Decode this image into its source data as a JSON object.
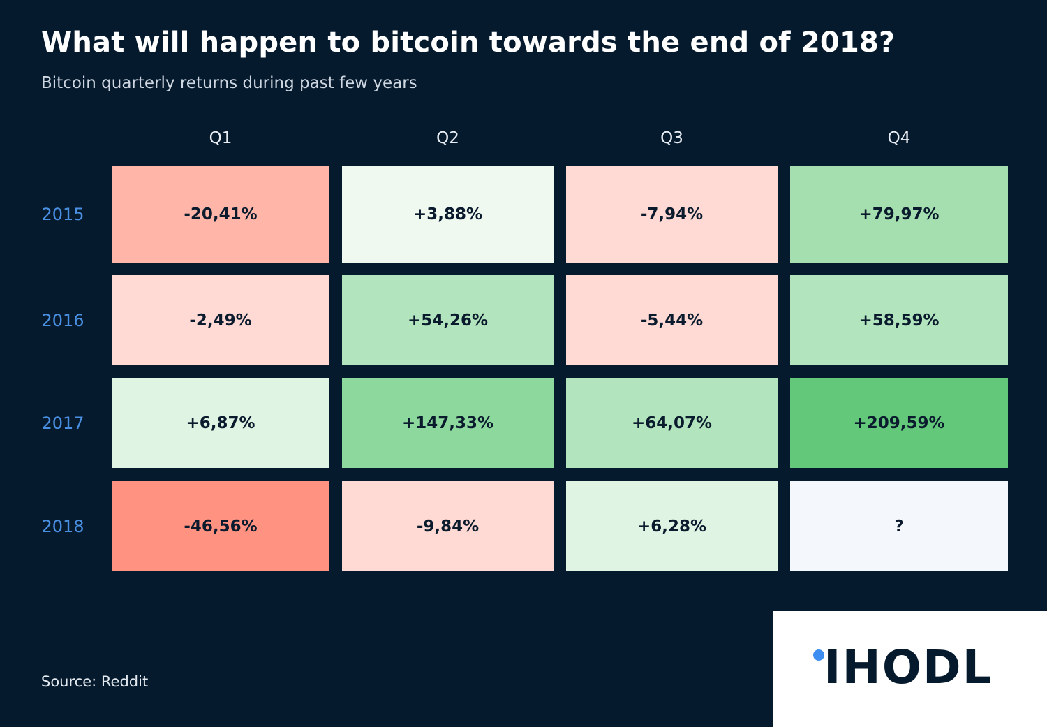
{
  "chart_data": {
    "type": "heatmap",
    "title": "What will happen to bitcoin towards the end of 2018?",
    "subtitle": "Bitcoin quarterly returns during past few years",
    "x_categories": [
      "Q1",
      "Q2",
      "Q3",
      "Q4"
    ],
    "y_categories": [
      "2015",
      "2016",
      "2017",
      "2018"
    ],
    "values": [
      [
        -20.41,
        3.88,
        -7.94,
        79.97
      ],
      [
        -2.49,
        54.26,
        -5.44,
        58.59
      ],
      [
        6.87,
        147.33,
        64.07,
        209.59
      ],
      [
        -46.56,
        -9.84,
        6.28,
        null
      ]
    ],
    "labels": [
      [
        "-20,41%",
        "+3,88%",
        "-7,94%",
        "+79,97%"
      ],
      [
        "-2,49%",
        "+54,26%",
        "-5,44%",
        "+58,59%"
      ],
      [
        "+6,87%",
        "+147,33%",
        "+64,07%",
        "+209,59%"
      ],
      [
        "-46,56%",
        "-9,84%",
        "+6,28%",
        "?"
      ]
    ],
    "cell_colors": [
      [
        "#ffb5a7",
        "#eff9f0",
        "#ffd9d3",
        "#a5dfb0"
      ],
      [
        "#ffd9d3",
        "#b2e5bd",
        "#ffd9d3",
        "#b2e5bd"
      ],
      [
        "#dff4e3",
        "#8dd89d",
        "#b2e5bd",
        "#63c87a"
      ],
      [
        "#ff9280",
        "#ffd9d3",
        "#dff4e3",
        "#f4f8fc"
      ]
    ],
    "unit": "%"
  },
  "source_text": "Source: Reddit",
  "logo": {
    "text": "IHODL",
    "dot_color": "#3d8ef0"
  },
  "colors": {
    "background": "#061a2e",
    "year_label": "#4a90e2"
  }
}
